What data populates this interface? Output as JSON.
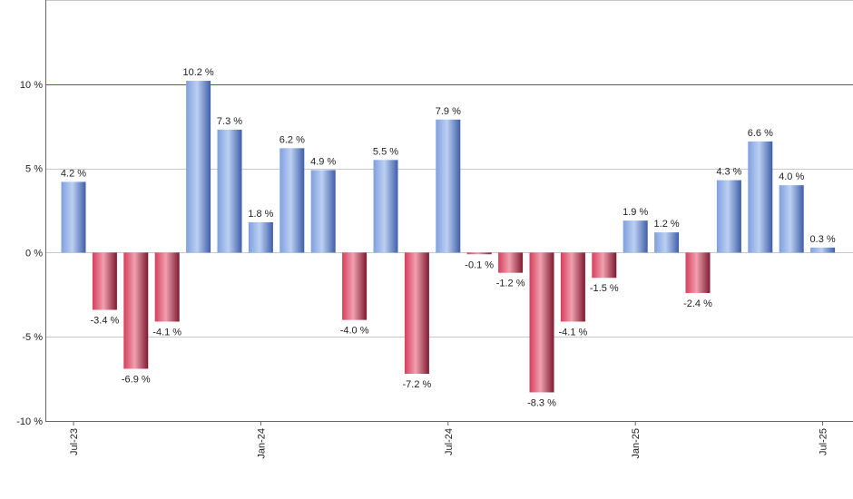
{
  "chart_data": {
    "type": "bar",
    "title": "",
    "xlabel": "",
    "ylabel": "",
    "ylim": [
      -10,
      15
    ],
    "yticks": [
      {
        "value": -10,
        "label": "-10 %"
      },
      {
        "value": -5,
        "label": "-5 %"
      },
      {
        "value": 0,
        "label": "0 %"
      },
      {
        "value": 5,
        "label": "5 %"
      },
      {
        "value": 10,
        "label": "10 %"
      }
    ],
    "xticks": [
      {
        "index": 0,
        "label": "Jul-23"
      },
      {
        "index": 6,
        "label": "Jan-24"
      },
      {
        "index": 12,
        "label": "Jul-24"
      },
      {
        "index": 18,
        "label": "Jan-25"
      },
      {
        "index": 24,
        "label": "Jul-25"
      }
    ],
    "grid": true,
    "reference_line": {
      "value": 10,
      "color": "#2e7d32"
    },
    "colors": {
      "positive": "#6f8fd6",
      "negative": "#c8344f"
    },
    "values": [
      4.2,
      -3.4,
      -6.9,
      -4.1,
      10.2,
      7.3,
      1.8,
      6.2,
      4.9,
      -4.0,
      5.5,
      -7.2,
      7.9,
      -0.1,
      -1.2,
      -8.3,
      -4.1,
      -1.5,
      1.9,
      1.2,
      -2.4,
      4.3,
      6.6,
      4.0,
      0.3
    ],
    "labels": [
      "4.2 %",
      "-3.4 %",
      "-6.9 %",
      "-4.1 %",
      "10.2 %",
      "7.3 %",
      "1.8 %",
      "6.2 %",
      "4.9 %",
      "-4.0 %",
      "5.5 %",
      "-7.2 %",
      "7.9 %",
      "-0.1 %",
      "-1.2 %",
      "-8.3 %",
      "-4.1 %",
      "-1.5 %",
      "1.9 %",
      "1.2 %",
      "-2.4 %",
      "4.3 %",
      "6.6 %",
      "4.0 %",
      "0.3 %"
    ]
  }
}
